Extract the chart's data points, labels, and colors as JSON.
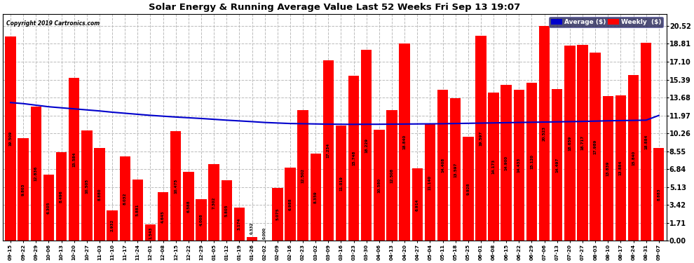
{
  "title": "Solar Energy & Running Average Value Last 52 Weeks Fri Sep 13 19:07",
  "copyright": "Copyright 2019 Cartronics.com",
  "bar_color": "#ff0000",
  "avg_line_color": "#0000cc",
  "background_color": "#ffffff",
  "grid_color": "#bbbbbb",
  "ylim": [
    0,
    21.67
  ],
  "yticks": [
    0.0,
    1.71,
    3.42,
    5.13,
    6.84,
    8.55,
    10.26,
    11.97,
    13.68,
    15.39,
    17.1,
    18.81,
    20.52
  ],
  "ylabel_right": [
    "0.00",
    "1.71",
    "3.42",
    "5.13",
    "6.84",
    "8.55",
    "10.26",
    "11.97",
    "13.68",
    "15.39",
    "17.10",
    "18.81",
    "20.52"
  ],
  "categories": [
    "09-15",
    "09-22",
    "09-29",
    "10-06",
    "10-13",
    "10-20",
    "10-27",
    "11-03",
    "11-10",
    "11-17",
    "11-24",
    "12-01",
    "12-08",
    "12-15",
    "12-22",
    "12-29",
    "01-05",
    "01-12",
    "01-19",
    "01-26",
    "02-02",
    "02-09",
    "02-16",
    "02-23",
    "03-02",
    "03-09",
    "03-16",
    "03-23",
    "03-30",
    "04-06",
    "04-13",
    "04-20",
    "04-27",
    "05-04",
    "05-11",
    "05-18",
    "05-25",
    "06-01",
    "06-08",
    "06-15",
    "06-22",
    "06-29",
    "07-06",
    "07-13",
    "07-20",
    "07-27",
    "08-03",
    "08-10",
    "08-17",
    "08-24",
    "08-31",
    "09-07"
  ],
  "weekly_values": [
    19.509,
    9.803,
    12.836,
    6.305,
    8.496,
    15.584,
    10.505,
    8.88,
    2.932,
    8.032,
    5.881,
    1.543,
    4.645,
    10.475,
    6.588,
    4.008,
    7.302,
    5.805,
    3.174,
    0.332,
    0.0,
    5.075,
    6.988,
    12.502,
    8.359,
    17.234,
    11.019,
    15.748,
    18.229,
    10.58,
    12.508,
    18.84,
    6.914,
    11.14,
    14.408,
    13.597,
    9.928,
    19.597,
    14.173,
    14.9,
    14.433,
    15.12,
    20.523,
    14.497,
    18.659,
    18.717,
    17.989,
    13.839,
    13.884,
    15.84,
    18.884,
    8.883
  ],
  "avg_values": [
    13.2,
    13.1,
    12.95,
    12.8,
    12.7,
    12.6,
    12.5,
    12.4,
    12.28,
    12.18,
    12.08,
    11.98,
    11.9,
    11.82,
    11.75,
    11.68,
    11.6,
    11.52,
    11.45,
    11.38,
    11.3,
    11.25,
    11.2,
    11.18,
    11.16,
    11.14,
    11.13,
    11.12,
    11.13,
    11.13,
    11.14,
    11.15,
    11.16,
    11.17,
    11.18,
    11.2,
    11.22,
    11.24,
    11.26,
    11.28,
    11.3,
    11.32,
    11.34,
    11.36,
    11.38,
    11.4,
    11.43,
    11.46,
    11.48,
    11.5,
    11.52,
    11.97
  ],
  "legend_avg_label": "Average ($)",
  "legend_weekly_label": "Weekly  ($)",
  "legend_avg_bg": "#0000cc",
  "legend_weekly_bg": "#ff0000",
  "legend_frame_bg": "#222255"
}
